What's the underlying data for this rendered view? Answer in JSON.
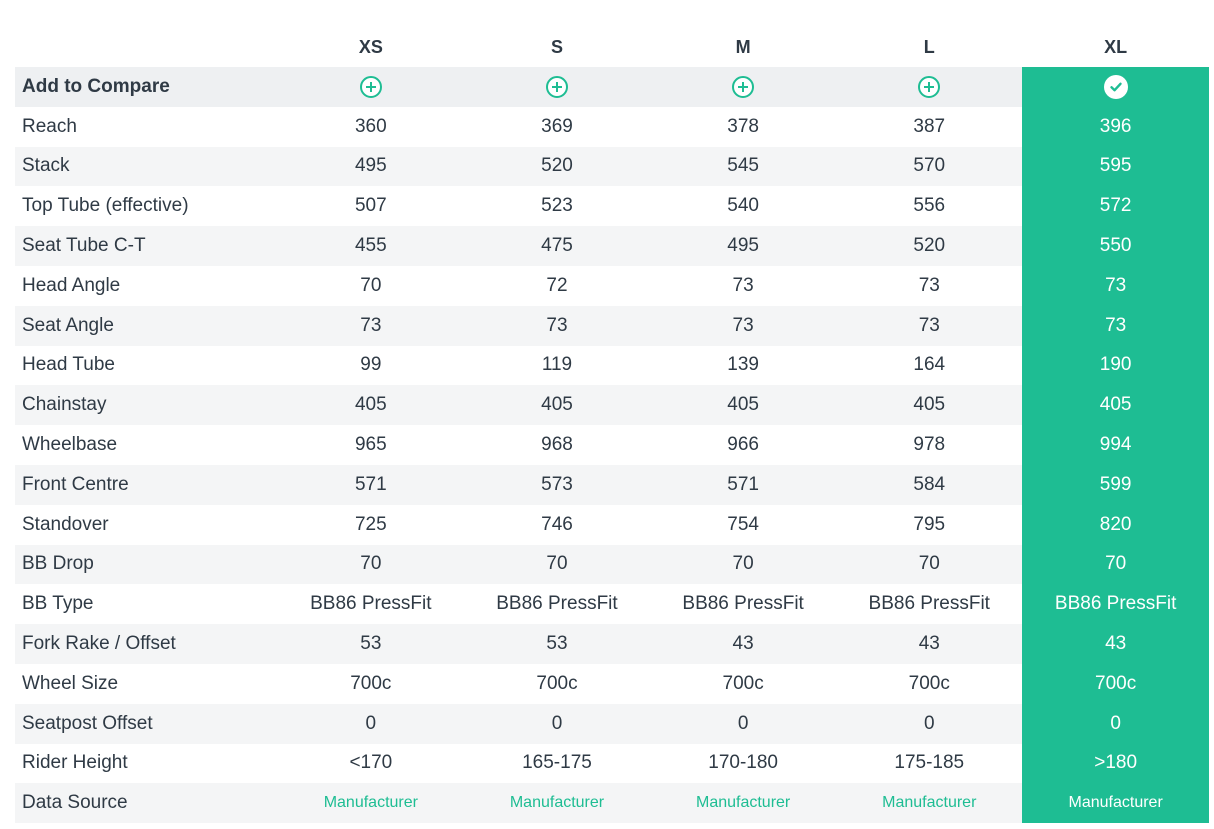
{
  "sizes": [
    "XS",
    "S",
    "M",
    "L",
    "XL"
  ],
  "selected_size": "XL",
  "compare_label": "Add to Compare",
  "colors": {
    "accent": "#1ebd93",
    "text": "#2f3a45",
    "row_alt": "#f4f5f6"
  },
  "icons": {
    "add": "plus-circle-icon",
    "selected": "check-circle-icon"
  },
  "rows": [
    {
      "label": "Reach",
      "values": [
        "360",
        "369",
        "378",
        "387",
        "396"
      ]
    },
    {
      "label": "Stack",
      "values": [
        "495",
        "520",
        "545",
        "570",
        "595"
      ]
    },
    {
      "label": "Top Tube (effective)",
      "values": [
        "507",
        "523",
        "540",
        "556",
        "572"
      ]
    },
    {
      "label": "Seat Tube C-T",
      "values": [
        "455",
        "475",
        "495",
        "520",
        "550"
      ]
    },
    {
      "label": "Head Angle",
      "values": [
        "70",
        "72",
        "73",
        "73",
        "73"
      ]
    },
    {
      "label": "Seat Angle",
      "values": [
        "73",
        "73",
        "73",
        "73",
        "73"
      ]
    },
    {
      "label": "Head Tube",
      "values": [
        "99",
        "119",
        "139",
        "164",
        "190"
      ]
    },
    {
      "label": "Chainstay",
      "values": [
        "405",
        "405",
        "405",
        "405",
        "405"
      ]
    },
    {
      "label": "Wheelbase",
      "values": [
        "965",
        "968",
        "966",
        "978",
        "994"
      ]
    },
    {
      "label": "Front Centre",
      "values": [
        "571",
        "573",
        "571",
        "584",
        "599"
      ]
    },
    {
      "label": "Standover",
      "values": [
        "725",
        "746",
        "754",
        "795",
        "820"
      ]
    },
    {
      "label": "BB Drop",
      "values": [
        "70",
        "70",
        "70",
        "70",
        "70"
      ]
    },
    {
      "label": "BB Type",
      "values": [
        "BB86 PressFit",
        "BB86 PressFit",
        "BB86 PressFit",
        "BB86 PressFit",
        "BB86 PressFit"
      ]
    },
    {
      "label": "Fork Rake / Offset",
      "values": [
        "53",
        "53",
        "43",
        "43",
        "43"
      ]
    },
    {
      "label": "Wheel Size",
      "values": [
        "700c",
        "700c",
        "700c",
        "700c",
        "700c"
      ]
    },
    {
      "label": "Seatpost Offset",
      "values": [
        "0",
        "0",
        "0",
        "0",
        "0"
      ]
    },
    {
      "label": "Rider Height",
      "values": [
        "<170",
        "165-175",
        "170-180",
        "175-185",
        ">180"
      ]
    }
  ],
  "data_source": {
    "label": "Data Source",
    "values": [
      "Manufacturer",
      "Manufacturer",
      "Manufacturer",
      "Manufacturer",
      "Manufacturer"
    ]
  }
}
